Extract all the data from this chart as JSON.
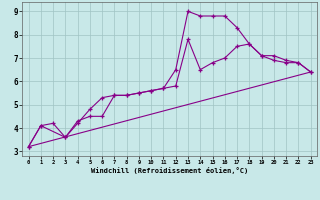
{
  "xlabel": "Windchill (Refroidissement éolien,°C)",
  "bg_color": "#c8e8e8",
  "grid_color": "#a0c4c4",
  "line_color": "#880088",
  "line1_x": [
    0,
    1,
    2,
    3,
    4,
    5,
    6,
    7,
    8,
    9,
    10,
    11,
    12,
    13,
    14,
    15,
    16,
    17,
    18,
    19,
    20,
    21,
    22,
    23
  ],
  "line1_y": [
    3.2,
    4.1,
    4.2,
    3.6,
    4.2,
    4.8,
    5.3,
    5.4,
    5.4,
    5.5,
    5.6,
    5.7,
    6.5,
    9.0,
    8.8,
    8.8,
    8.8,
    8.3,
    7.6,
    7.1,
    6.9,
    6.8,
    6.8,
    6.4
  ],
  "line2_x": [
    0,
    1,
    3,
    4,
    5,
    6,
    7,
    8,
    9,
    10,
    11,
    12,
    13,
    14,
    15,
    16,
    17,
    18,
    19,
    20,
    21,
    22,
    23
  ],
  "line2_y": [
    3.2,
    4.1,
    3.6,
    4.3,
    4.5,
    4.5,
    5.4,
    5.4,
    5.5,
    5.6,
    5.7,
    5.8,
    7.8,
    6.5,
    6.8,
    7.0,
    7.5,
    7.6,
    7.1,
    7.1,
    6.9,
    6.8,
    6.4
  ],
  "line3_x": [
    0,
    23
  ],
  "line3_y": [
    3.2,
    6.4
  ],
  "xlim": [
    -0.5,
    23.5
  ],
  "ylim": [
    2.8,
    9.4
  ],
  "xticks": [
    0,
    1,
    2,
    3,
    4,
    5,
    6,
    7,
    8,
    9,
    10,
    11,
    12,
    13,
    14,
    15,
    16,
    17,
    18,
    19,
    20,
    21,
    22,
    23
  ],
  "yticks": [
    3,
    4,
    5,
    6,
    7,
    8,
    9
  ]
}
